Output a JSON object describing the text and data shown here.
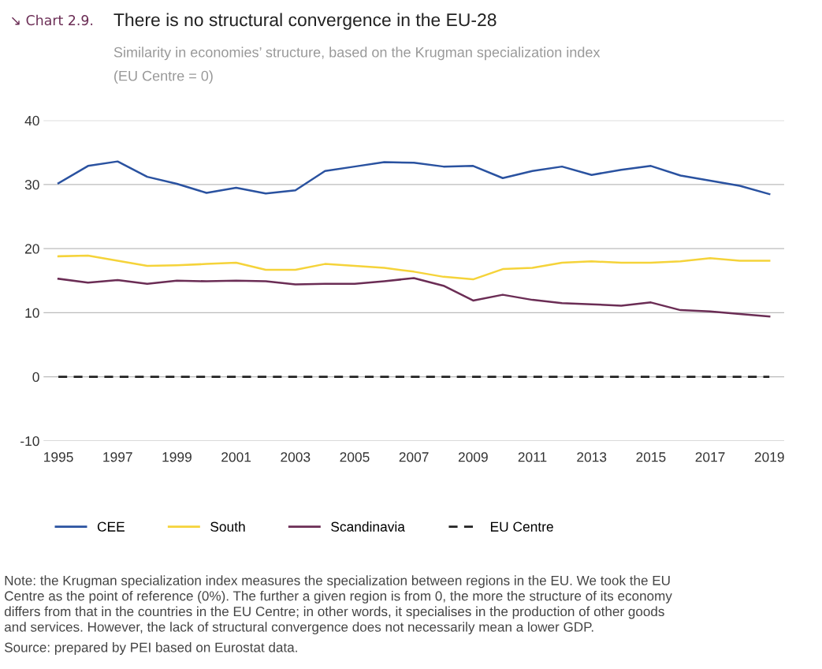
{
  "chart_data": {
    "type": "line",
    "title": "There is no structural convergence in the EU-28",
    "subtitle": "Similarity in economies’ structure, based on the Krugman specialization index\n(EU Centre = 0)",
    "annotations": [
      "↘ Chart 2.9.",
      "Note: the Krugman specialization index measures the specialization between regions in the EU. We took the EU\nCentre as the point of reference (0%). The further a given region is from 0, the more the structure of its economy\ndiffers from that in the countries in the EU Centre; in other words, it specialises in the production of other goods\nand services. However, the lack of structural convergence does not necessarily mean a lower GDP.",
      "Source: prepared by PEI based on Eurostat data."
    ],
    "x": [
      1995,
      1996,
      1997,
      1998,
      1999,
      2000,
      2001,
      2002,
      2003,
      2004,
      2005,
      2006,
      2007,
      2008,
      2009,
      2010,
      2011,
      2012,
      2013,
      2014,
      2015,
      2016,
      2017,
      2018,
      2019
    ],
    "series": [
      {
        "name": "CEE",
        "color": "#2a52a0",
        "values": [
          30.2,
          32.9,
          33.6,
          31.2,
          30.1,
          28.7,
          29.5,
          28.6,
          29.1,
          32.1,
          32.8,
          33.5,
          33.4,
          32.8,
          32.9,
          31.0,
          32.1,
          32.8,
          31.5,
          32.3,
          32.9,
          31.4,
          30.6,
          29.8,
          28.5
        ]
      },
      {
        "name": "South",
        "color": "#f5d33a",
        "values": [
          18.8,
          18.9,
          18.1,
          17.3,
          17.4,
          17.6,
          17.8,
          16.7,
          16.7,
          17.6,
          17.3,
          17.0,
          16.4,
          15.6,
          15.2,
          16.8,
          17.0,
          17.8,
          18.0,
          17.8,
          17.8,
          18.0,
          18.5,
          18.1,
          18.1
        ]
      },
      {
        "name": "Scandinavia",
        "color": "#6b2d55",
        "values": [
          15.3,
          14.7,
          15.1,
          14.5,
          15.0,
          14.9,
          15.0,
          14.9,
          14.4,
          14.5,
          14.5,
          14.9,
          15.4,
          14.2,
          11.9,
          12.8,
          12.0,
          11.5,
          11.3,
          11.1,
          11.6,
          10.4,
          10.2,
          9.8,
          9.4
        ]
      },
      {
        "name": "EU Centre",
        "color": "#222222",
        "line_style": "dashed",
        "values": [
          0,
          0,
          0,
          0,
          0,
          0,
          0,
          0,
          0,
          0,
          0,
          0,
          0,
          0,
          0,
          0,
          0,
          0,
          0,
          0,
          0,
          0,
          0,
          0,
          0
        ]
      }
    ],
    "xlim": [
      1994.5,
      2019.5
    ],
    "xticks": [
      1995,
      1997,
      1999,
      2001,
      2003,
      2005,
      2007,
      2009,
      2011,
      2013,
      2015,
      2017,
      2019
    ],
    "ylim": [
      -10,
      40
    ],
    "yticks": [
      -10,
      0,
      10,
      20,
      30,
      40
    ],
    "grid": "y",
    "legend": "bottom",
    "marker": "none",
    "line_style": "solid"
  }
}
